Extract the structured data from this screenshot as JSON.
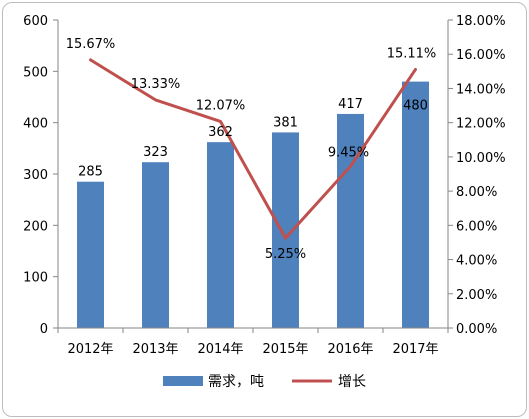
{
  "chart_data": {
    "type": "bar",
    "categories": [
      "2012年",
      "2013年",
      "2014年",
      "2015年",
      "2016年",
      "2017年"
    ],
    "series": [
      {
        "name": "需求，吨",
        "type": "bar",
        "axis": "left",
        "values": [
          285,
          323,
          362,
          381,
          417,
          480
        ],
        "labels": [
          "285",
          "323",
          "362",
          "381",
          "417",
          "480"
        ]
      },
      {
        "name": "增长",
        "type": "line",
        "axis": "right",
        "values": [
          15.67,
          13.33,
          12.07,
          5.25,
          9.45,
          15.11
        ],
        "labels": [
          "15.67%",
          "13.33%",
          "12.07%",
          "5.25%",
          "9.45%",
          "15.11%"
        ]
      }
    ],
    "y_left": {
      "ylim": [
        0,
        600
      ],
      "ticks": [
        "0",
        "100",
        "200",
        "300",
        "400",
        "500",
        "600"
      ]
    },
    "y_right": {
      "ylim": [
        0,
        18
      ],
      "ticks": [
        "0.00%",
        "2.00%",
        "4.00%",
        "6.00%",
        "8.00%",
        "10.00%",
        "12.00%",
        "14.00%",
        "16.00%",
        "18.00%"
      ]
    },
    "grid": false,
    "legend": "bottom",
    "colors": {
      "bar": "#4f81bd",
      "line": "#c0504d",
      "axis": "#868686"
    }
  }
}
